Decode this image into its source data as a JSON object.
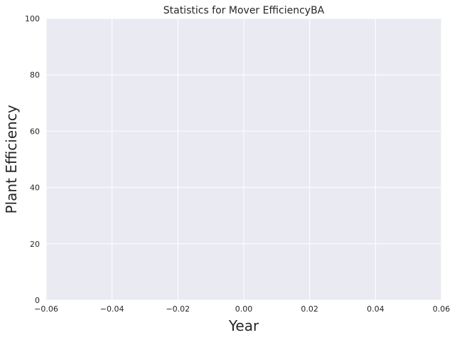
{
  "chart_data": {
    "type": "line",
    "title": "Statistics for Mover EfficiencyBA",
    "xlabel": "Year",
    "ylabel": "Plant Efficiency",
    "xlim": [
      -0.06,
      0.06
    ],
    "ylim": [
      0,
      100
    ],
    "x_ticks": [
      -0.06,
      -0.04,
      -0.02,
      0.0,
      0.02,
      0.04,
      0.06
    ],
    "x_tick_labels": [
      "−0.06",
      "−0.04",
      "−0.02",
      "0.00",
      "0.02",
      "0.04",
      "0.06"
    ],
    "y_ticks": [
      0,
      20,
      40,
      60,
      80,
      100
    ],
    "y_tick_labels": [
      "0",
      "20",
      "40",
      "60",
      "80",
      "100"
    ],
    "grid": true,
    "series": [],
    "colors": {
      "plot_background": "#eaeaf2",
      "grid": "#ffffff",
      "text": "#262626"
    }
  }
}
